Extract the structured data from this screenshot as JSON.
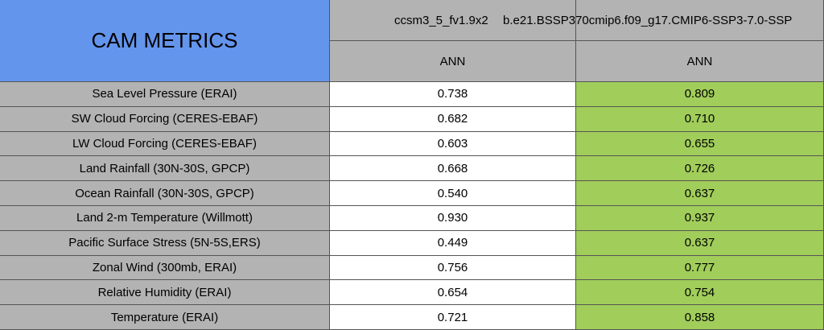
{
  "header": {
    "title": "CAM METRICS",
    "columns": [
      {
        "name": "ccsm3_5_fv1.9x2",
        "period": "ANN"
      },
      {
        "name": "b.e21.BSSP370cmip6.f09_g17.CMIP6-SSP3-7.0-SSP",
        "period": "ANN"
      }
    ]
  },
  "rows": [
    {
      "label": "Sea Level Pressure (ERAI)",
      "values": [
        "0.738",
        "0.809"
      ]
    },
    {
      "label": "SW Cloud Forcing (CERES-EBAF)",
      "values": [
        "0.682",
        "0.710"
      ]
    },
    {
      "label": "LW Cloud Forcing (CERES-EBAF)",
      "values": [
        "0.603",
        "0.655"
      ]
    },
    {
      "label": "Land Rainfall (30N-30S, GPCP)",
      "values": [
        "0.668",
        "0.726"
      ]
    },
    {
      "label": "Ocean Rainfall (30N-30S, GPCP)",
      "values": [
        "0.540",
        "0.637"
      ]
    },
    {
      "label": "Land 2-m Temperature (Willmott)",
      "values": [
        "0.930",
        "0.937"
      ]
    },
    {
      "label": "Pacific Surface Stress (5N-5S,ERS)",
      "values": [
        "0.449",
        "0.637"
      ]
    },
    {
      "label": "Zonal Wind (300mb, ERAI)",
      "values": [
        "0.756",
        "0.777"
      ]
    },
    {
      "label": "Relative Humidity (ERAI)",
      "values": [
        "0.654",
        "0.754"
      ]
    },
    {
      "label": "Temperature (ERAI)",
      "values": [
        "0.721",
        "0.858"
      ]
    }
  ]
}
